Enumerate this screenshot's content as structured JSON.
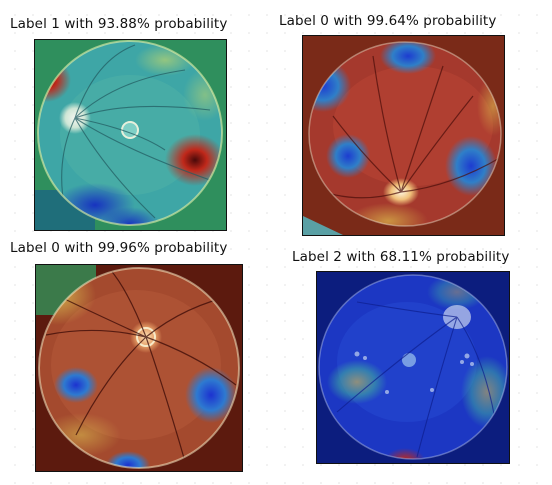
{
  "panels": [
    {
      "id": "p1",
      "caption": "Label 1 with 93.88% probability",
      "colors": {
        "base": "#3da7a8",
        "hot": "#c02a1a",
        "cold": "#1e3cc8",
        "corner": "#2b8a55"
      }
    },
    {
      "id": "p2",
      "caption": "Label 0 with 99.64% probability",
      "colors": {
        "base": "#a5382d",
        "hot": "#d24a2c",
        "cold": "#2747d2",
        "corner": "#7a2b18"
      }
    },
    {
      "id": "p3",
      "caption": "Label 0 with 99.96% probability",
      "colors": {
        "base": "#a34a2e",
        "hot": "#d6b23e",
        "cold": "#1e3ed6",
        "corner": "#5c1a0e"
      }
    },
    {
      "id": "p4",
      "caption": "Label 2 with 68.11% probability",
      "colors": {
        "base": "#1b35c2",
        "hot": "#b9a93d",
        "cold": "#0f1f9a",
        "corner": "#0d1f82"
      }
    }
  ]
}
